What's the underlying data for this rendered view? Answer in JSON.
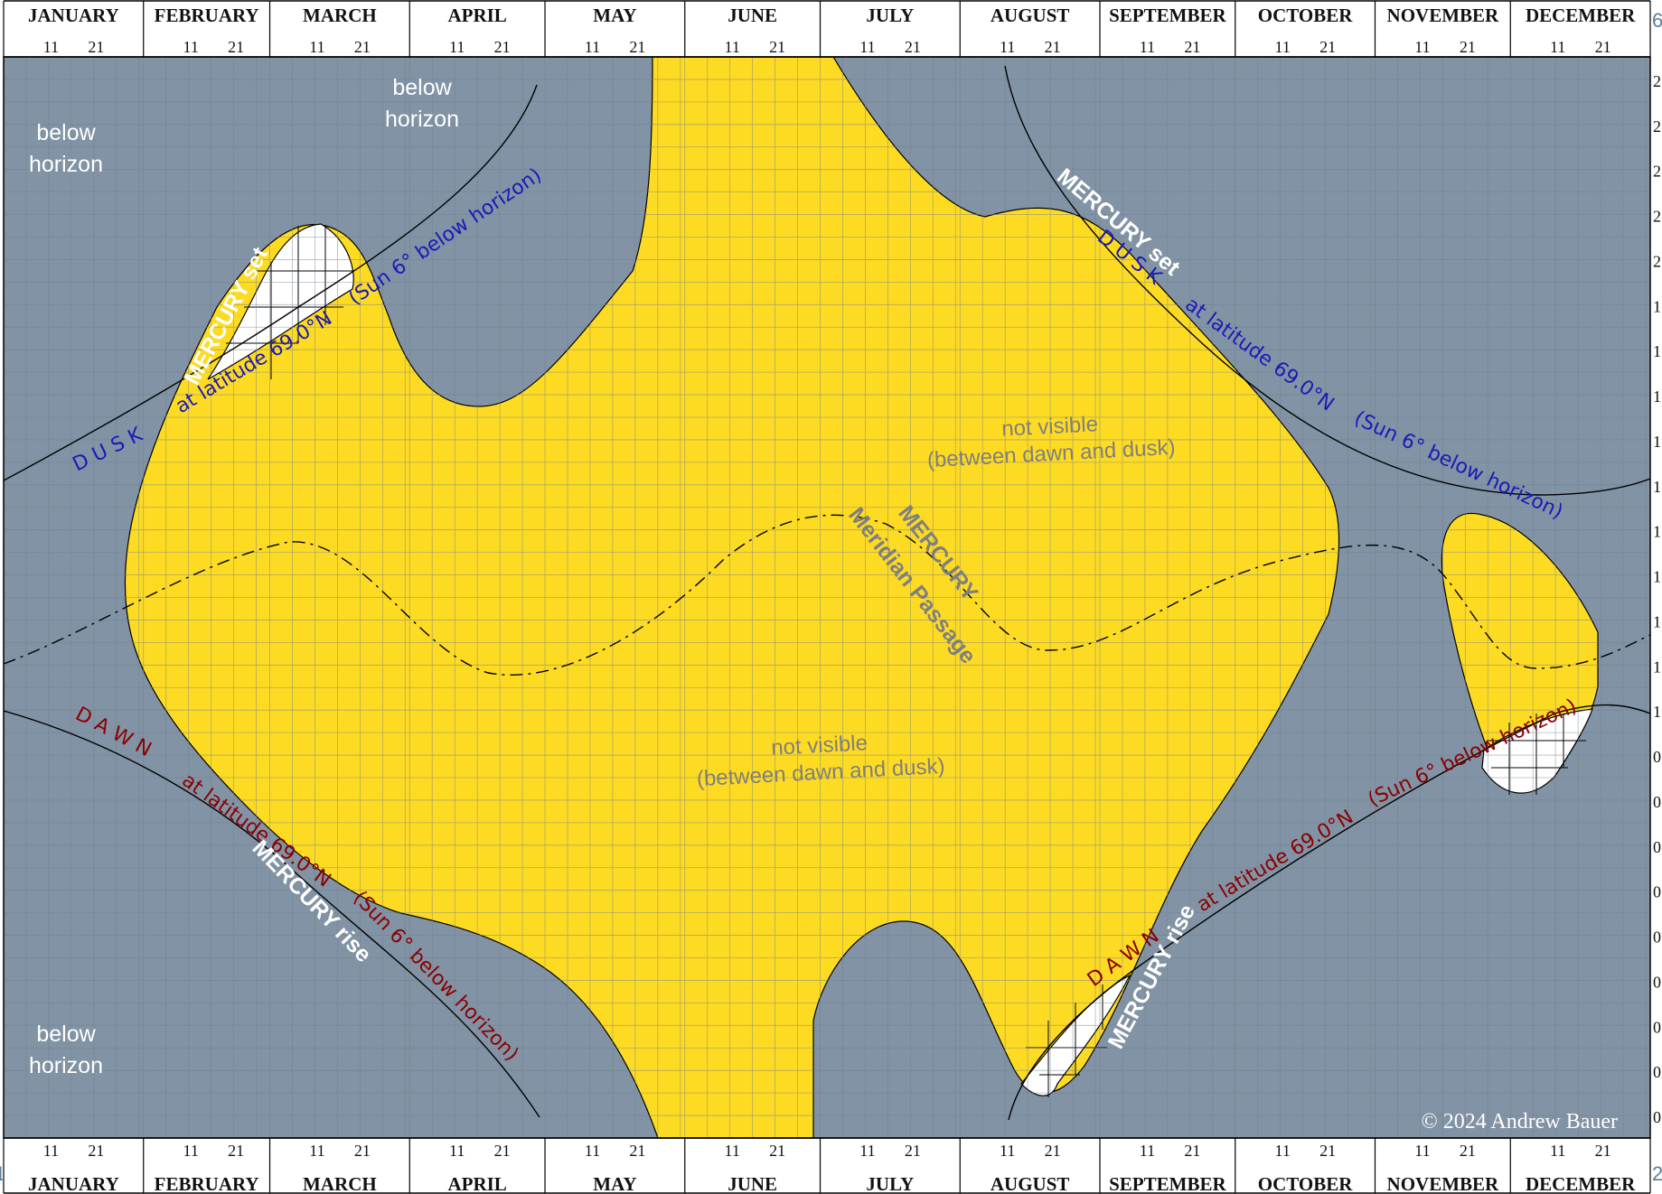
{
  "chart_data": {
    "type": "area",
    "title": "",
    "months": [
      "JANUARY",
      "FEBRUARY",
      "MARCH",
      "APRIL",
      "MAY",
      "JUNE",
      "JULY",
      "AUGUST",
      "SEPTEMBER",
      "OCTOBER",
      "NOVEMBER",
      "DECEMBER"
    ],
    "month_days": [
      31,
      28,
      31,
      30,
      31,
      30,
      31,
      31,
      30,
      31,
      30,
      31
    ],
    "day_ticks": [
      "11",
      "21"
    ],
    "y_axis": {
      "unit": "hours",
      "range": [
        0,
        24
      ],
      "direction": "bottom-to-top",
      "tick_labels_partial": [
        "2",
        "2",
        "2",
        "2",
        "2",
        "1",
        "1",
        "1",
        "1",
        "1",
        "1",
        "1",
        "1",
        "1",
        "1",
        "0",
        "0",
        "0",
        "0",
        "0",
        "0",
        "0",
        "0",
        "0"
      ]
    },
    "colors": {
      "below_horizon": "#8193a4",
      "visible": "#fedb23",
      "grid": "#6f8090",
      "dusk": "#1a1ab8",
      "dawn": "#8b0000",
      "meridian": "#000000"
    },
    "labels": {
      "below_horizon_top_left": [
        "below",
        "horizon"
      ],
      "below_horizon_top_mid": [
        "below",
        "horizon"
      ],
      "below_horizon_bottom_left": [
        "below",
        "horizon"
      ],
      "not_visible_1": [
        "not visible",
        "(between dawn and dusk)"
      ],
      "not_visible_2": [
        "not visible",
        "(between dawn and dusk)"
      ],
      "dusk_left": "D U S K",
      "dusk_lat_left": "at latitude 69.0°N",
      "dusk_sun_left": "(Sun 6° below horizon)",
      "dusk_right": "D U S K",
      "dusk_lat_right": "at latitude 69.0°N",
      "dusk_sun_right": "(Sun 6° below horizon)",
      "dawn_left": "D A W N",
      "dawn_lat_left": "at latitude 69.0°N",
      "dawn_sun_left": "(Sun 6° below horizon)",
      "dawn_right": "D A W N",
      "dawn_lat_right": "at latitude 69.0°N",
      "dawn_sun_right": "(Sun 6° below horizon)",
      "mercury_set_left": "MERCURY set",
      "mercury_set_right": "MERCURY set",
      "mercury_rise_left": "MERCURY rise",
      "mercury_rise_right": "MERCURY rise",
      "meridian_1": "MERCURY",
      "meridian_2": "Meridian Passage",
      "copyright": "© 2024 Andrew Bauer",
      "side_top": "6",
      "side_bottom_right": "2",
      "side_bottom_left": "1"
    },
    "meridian_passage": [
      {
        "date": "Jan 1",
        "hour": 10.2
      },
      {
        "date": "Jan 21",
        "hour": 11.0
      },
      {
        "date": "Feb 15",
        "hour": 12.3
      },
      {
        "date": "Mar 5",
        "hour": 13.3
      },
      {
        "date": "Apr 5",
        "hour": 10.5
      },
      {
        "date": "May 10",
        "hour": 11.0
      },
      {
        "date": "Jun 15",
        "hour": 13.7
      },
      {
        "date": "Jul 25",
        "hour": 12.2
      },
      {
        "date": "Aug 20",
        "hour": 10.9
      },
      {
        "date": "Sep 20",
        "hour": 12.3
      },
      {
        "date": "Oct 28",
        "hour": 13.0
      },
      {
        "date": "Nov 20",
        "hour": 12.0
      },
      {
        "date": "Dec 20",
        "hour": 10.6
      },
      {
        "date": "Dec 31",
        "hour": 11.2
      }
    ]
  }
}
